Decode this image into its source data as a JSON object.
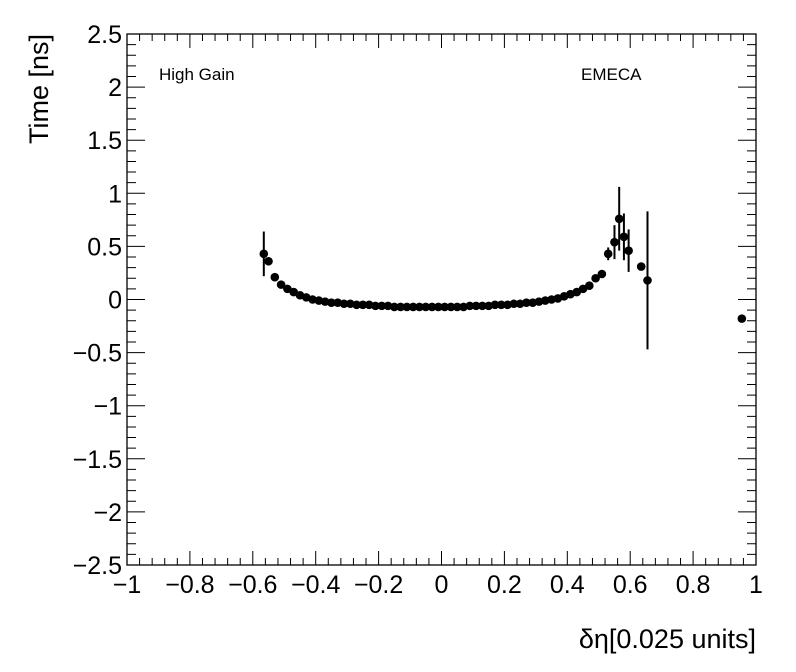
{
  "chart_data": {
    "type": "scatter",
    "xlabel": "δη[0.025 units]",
    "ylabel": "Time [ns]",
    "xlim": [
      -1,
      1
    ],
    "ylim": [
      -2.5,
      2.5
    ],
    "grid": false,
    "annotations": [
      "High Gain",
      "EMECA"
    ],
    "xticks": [
      "−1",
      "−0.8",
      "−0.6",
      "−0.4",
      "−0.2",
      "0",
      "0.2",
      "0.4",
      "0.6",
      "0.8",
      "1"
    ],
    "yticks": [
      "2.5",
      "2",
      "1.5",
      "1",
      "0.5",
      "0",
      "−0.5",
      "−1",
      "−1.5",
      "−2",
      "−2.5"
    ],
    "series": [
      {
        "points": [
          {
            "x": -0.565,
            "y": 0.43,
            "err": 0.21
          },
          {
            "x": -0.55,
            "y": 0.36,
            "err": 0
          },
          {
            "x": -0.53,
            "y": 0.21,
            "err": 0
          },
          {
            "x": -0.51,
            "y": 0.14,
            "err": 0
          },
          {
            "x": -0.49,
            "y": 0.1,
            "err": 0
          },
          {
            "x": -0.47,
            "y": 0.07,
            "err": 0
          },
          {
            "x": -0.45,
            "y": 0.04,
            "err": 0
          },
          {
            "x": -0.43,
            "y": 0.02,
            "err": 0
          },
          {
            "x": -0.41,
            "y": 0.0,
            "err": 0
          },
          {
            "x": -0.39,
            "y": -0.01,
            "err": 0
          },
          {
            "x": -0.37,
            "y": -0.02,
            "err": 0
          },
          {
            "x": -0.35,
            "y": -0.03,
            "err": 0
          },
          {
            "x": -0.33,
            "y": -0.03,
            "err": 0
          },
          {
            "x": -0.31,
            "y": -0.04,
            "err": 0
          },
          {
            "x": -0.29,
            "y": -0.04,
            "err": 0
          },
          {
            "x": -0.27,
            "y": -0.05,
            "err": 0
          },
          {
            "x": -0.25,
            "y": -0.05,
            "err": 0
          },
          {
            "x": -0.23,
            "y": -0.05,
            "err": 0
          },
          {
            "x": -0.21,
            "y": -0.06,
            "err": 0
          },
          {
            "x": -0.19,
            "y": -0.06,
            "err": 0
          },
          {
            "x": -0.17,
            "y": -0.06,
            "err": 0
          },
          {
            "x": -0.15,
            "y": -0.07,
            "err": 0
          },
          {
            "x": -0.13,
            "y": -0.07,
            "err": 0
          },
          {
            "x": -0.11,
            "y": -0.07,
            "err": 0
          },
          {
            "x": -0.09,
            "y": -0.07,
            "err": 0
          },
          {
            "x": -0.07,
            "y": -0.07,
            "err": 0
          },
          {
            "x": -0.05,
            "y": -0.07,
            "err": 0
          },
          {
            "x": -0.03,
            "y": -0.07,
            "err": 0
          },
          {
            "x": -0.01,
            "y": -0.07,
            "err": 0
          },
          {
            "x": 0.01,
            "y": -0.07,
            "err": 0
          },
          {
            "x": 0.03,
            "y": -0.07,
            "err": 0
          },
          {
            "x": 0.05,
            "y": -0.07,
            "err": 0
          },
          {
            "x": 0.07,
            "y": -0.07,
            "err": 0
          },
          {
            "x": 0.09,
            "y": -0.06,
            "err": 0
          },
          {
            "x": 0.11,
            "y": -0.06,
            "err": 0
          },
          {
            "x": 0.13,
            "y": -0.06,
            "err": 0
          },
          {
            "x": 0.15,
            "y": -0.06,
            "err": 0
          },
          {
            "x": 0.17,
            "y": -0.05,
            "err": 0
          },
          {
            "x": 0.19,
            "y": -0.05,
            "err": 0
          },
          {
            "x": 0.21,
            "y": -0.05,
            "err": 0
          },
          {
            "x": 0.23,
            "y": -0.04,
            "err": 0
          },
          {
            "x": 0.25,
            "y": -0.04,
            "err": 0
          },
          {
            "x": 0.27,
            "y": -0.03,
            "err": 0
          },
          {
            "x": 0.29,
            "y": -0.03,
            "err": 0
          },
          {
            "x": 0.31,
            "y": -0.02,
            "err": 0
          },
          {
            "x": 0.33,
            "y": -0.01,
            "err": 0
          },
          {
            "x": 0.35,
            "y": 0.0,
            "err": 0
          },
          {
            "x": 0.37,
            "y": 0.01,
            "err": 0
          },
          {
            "x": 0.39,
            "y": 0.03,
            "err": 0
          },
          {
            "x": 0.41,
            "y": 0.05,
            "err": 0
          },
          {
            "x": 0.43,
            "y": 0.07,
            "err": 0
          },
          {
            "x": 0.45,
            "y": 0.1,
            "err": 0
          },
          {
            "x": 0.47,
            "y": 0.13,
            "err": 0
          },
          {
            "x": 0.49,
            "y": 0.2,
            "err": 0
          },
          {
            "x": 0.51,
            "y": 0.24,
            "err": 0
          },
          {
            "x": 0.53,
            "y": 0.43,
            "err": 0.06
          },
          {
            "x": 0.55,
            "y": 0.54,
            "err": 0.16
          },
          {
            "x": 0.565,
            "y": 0.76,
            "err": 0.3
          },
          {
            "x": 0.58,
            "y": 0.59,
            "err": 0.22
          },
          {
            "x": 0.595,
            "y": 0.46,
            "err": 0.2
          },
          {
            "x": 0.635,
            "y": 0.31,
            "err": 0
          },
          {
            "x": 0.655,
            "y": 0.18,
            "err": 0.65
          },
          {
            "x": 0.955,
            "y": -0.18,
            "err": 0
          }
        ]
      }
    ]
  }
}
